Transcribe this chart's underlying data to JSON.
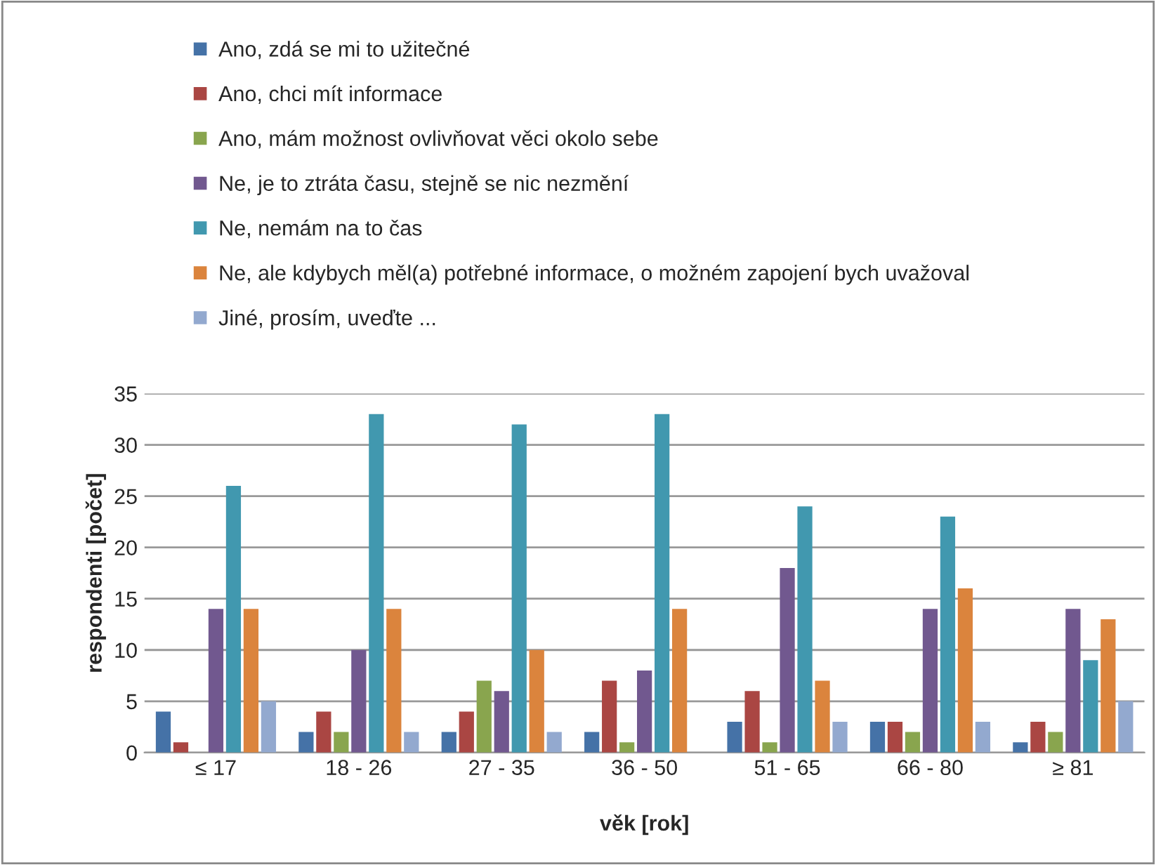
{
  "chart_data": {
    "type": "bar",
    "xlabel": "věk [rok]",
    "ylabel": "respondenti [počet]",
    "categories": [
      "≤ 17",
      "18 - 26",
      "27 - 35",
      "36 - 50",
      "51 - 65",
      "66 - 80",
      "≥ 81"
    ],
    "series": [
      {
        "name": "Ano, zdá se mi to užitečné",
        "color": "#4572a7",
        "values": [
          4,
          2,
          2,
          2,
          3,
          3,
          1
        ]
      },
      {
        "name": "Ano, chci mít informace",
        "color": "#aa4643",
        "values": [
          1,
          4,
          4,
          7,
          6,
          3,
          3
        ]
      },
      {
        "name": "Ano, mám možnost ovlivňovat věci okolo sebe",
        "color": "#89a54e",
        "values": [
          0,
          2,
          7,
          1,
          1,
          2,
          2
        ]
      },
      {
        "name": "Ne, je to ztráta času, stejně se nic nezmění",
        "color": "#71588f",
        "values": [
          14,
          10,
          6,
          8,
          18,
          14,
          14
        ]
      },
      {
        "name": "Ne, nemám na to čas",
        "color": "#4198af",
        "values": [
          26,
          33,
          32,
          33,
          24,
          23,
          9
        ]
      },
      {
        "name": "Ne, ale kdybych měl(a) potřebné informace, o možném zapojení bych uvažoval",
        "color": "#db843d",
        "values": [
          14,
          14,
          10,
          14,
          7,
          16,
          13
        ]
      },
      {
        "name": "Jiné, prosím, uveďte ...",
        "color": "#93a9cf",
        "values": [
          5,
          2,
          2,
          0,
          3,
          3,
          5
        ]
      }
    ],
    "ylim": [
      0,
      35
    ],
    "yticks": [
      0,
      5,
      10,
      15,
      20,
      25,
      30,
      35
    ],
    "grid": "y",
    "legend": "top"
  }
}
